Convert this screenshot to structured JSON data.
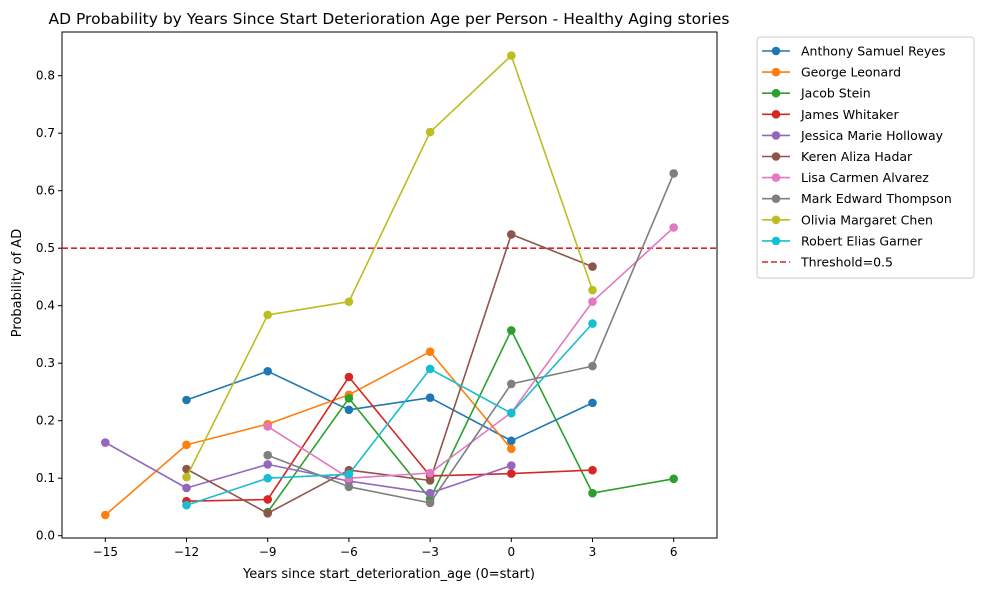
{
  "chart_data": {
    "type": "line",
    "title": "AD Probability by Years Since Start Deterioration Age per Person - Healthy Aging stories",
    "xlabel": "Years since start_deterioration_age (0=start)",
    "ylabel": "Probability of AD",
    "xlim": [
      -16.6,
      7.6
    ],
    "ylim": [
      -0.004,
      0.876
    ],
    "xticks": [
      -15,
      -12,
      -9,
      -6,
      -3,
      0,
      3,
      6
    ],
    "yticks": [
      0.0,
      0.1,
      0.2,
      0.3,
      0.4,
      0.5,
      0.6,
      0.7,
      0.8
    ],
    "xtick_labels": [
      "−15",
      "−12",
      "−9",
      "−6",
      "−3",
      "0",
      "3",
      "6"
    ],
    "ytick_labels": [
      "0.0",
      "0.1",
      "0.2",
      "0.3",
      "0.4",
      "0.5",
      "0.6",
      "0.7",
      "0.8"
    ],
    "legend_position": "outside-right",
    "series": [
      {
        "name": "Anthony Samuel Reyes",
        "color": "#1f77b4",
        "x": [
          -12,
          -9,
          -6,
          -3,
          0,
          3
        ],
        "y": [
          0.236,
          0.286,
          0.219,
          0.24,
          0.165,
          0.231
        ]
      },
      {
        "name": "George Leonard",
        "color": "#ff7f0e",
        "x": [
          -15,
          -12,
          -9,
          -6,
          -3,
          0
        ],
        "y": [
          0.036,
          0.158,
          0.194,
          0.245,
          0.32,
          0.151
        ]
      },
      {
        "name": "Jacob Stein",
        "color": "#2ca02c",
        "x": [
          -9,
          -6,
          -3,
          0,
          3,
          6
        ],
        "y": [
          0.041,
          0.239,
          0.064,
          0.357,
          0.074,
          0.099
        ]
      },
      {
        "name": "James Whitaker",
        "color": "#d62728",
        "x": [
          -12,
          -9,
          -6,
          -3,
          0,
          3
        ],
        "y": [
          0.06,
          0.063,
          0.276,
          0.104,
          0.108,
          0.114
        ]
      },
      {
        "name": "Jessica Marie Holloway",
        "color": "#9467bd",
        "x": [
          -15,
          -12,
          -9,
          -6,
          -3,
          0
        ],
        "y": [
          0.162,
          0.083,
          0.124,
          0.095,
          0.074,
          0.122
        ]
      },
      {
        "name": "Keren Aliza Hadar",
        "color": "#8c564b",
        "x": [
          -12,
          -9,
          -6,
          -3,
          0,
          3
        ],
        "y": [
          0.116,
          0.039,
          0.114,
          0.096,
          0.524,
          0.468
        ]
      },
      {
        "name": "Lisa Carmen Alvarez",
        "color": "#e377c2",
        "x": [
          -9,
          -6,
          -3,
          0,
          3,
          6
        ],
        "y": [
          0.19,
          0.1,
          0.109,
          0.214,
          0.407,
          0.536
        ]
      },
      {
        "name": "Mark Edward Thompson",
        "color": "#7f7f7f",
        "x": [
          -9,
          -6,
          -3,
          0,
          3,
          6
        ],
        "y": [
          0.14,
          0.085,
          0.057,
          0.264,
          0.295,
          0.63
        ]
      },
      {
        "name": "Olivia Margaret Chen",
        "color": "#bcbd22",
        "x": [
          -12,
          -9,
          -6,
          -3,
          0,
          3
        ],
        "y": [
          0.102,
          0.384,
          0.407,
          0.702,
          0.835,
          0.427
        ]
      },
      {
        "name": "Robert Elias Garner",
        "color": "#17becf",
        "x": [
          -12,
          -9,
          -6,
          -3,
          0,
          3
        ],
        "y": [
          0.053,
          0.1,
          0.107,
          0.29,
          0.213,
          0.369
        ]
      }
    ],
    "reference_lines": [
      {
        "name": "Threshold=0.5",
        "orientation": "horizontal",
        "value": 0.5,
        "color": "#d62728",
        "style": "dashed"
      }
    ],
    "grid": false
  }
}
